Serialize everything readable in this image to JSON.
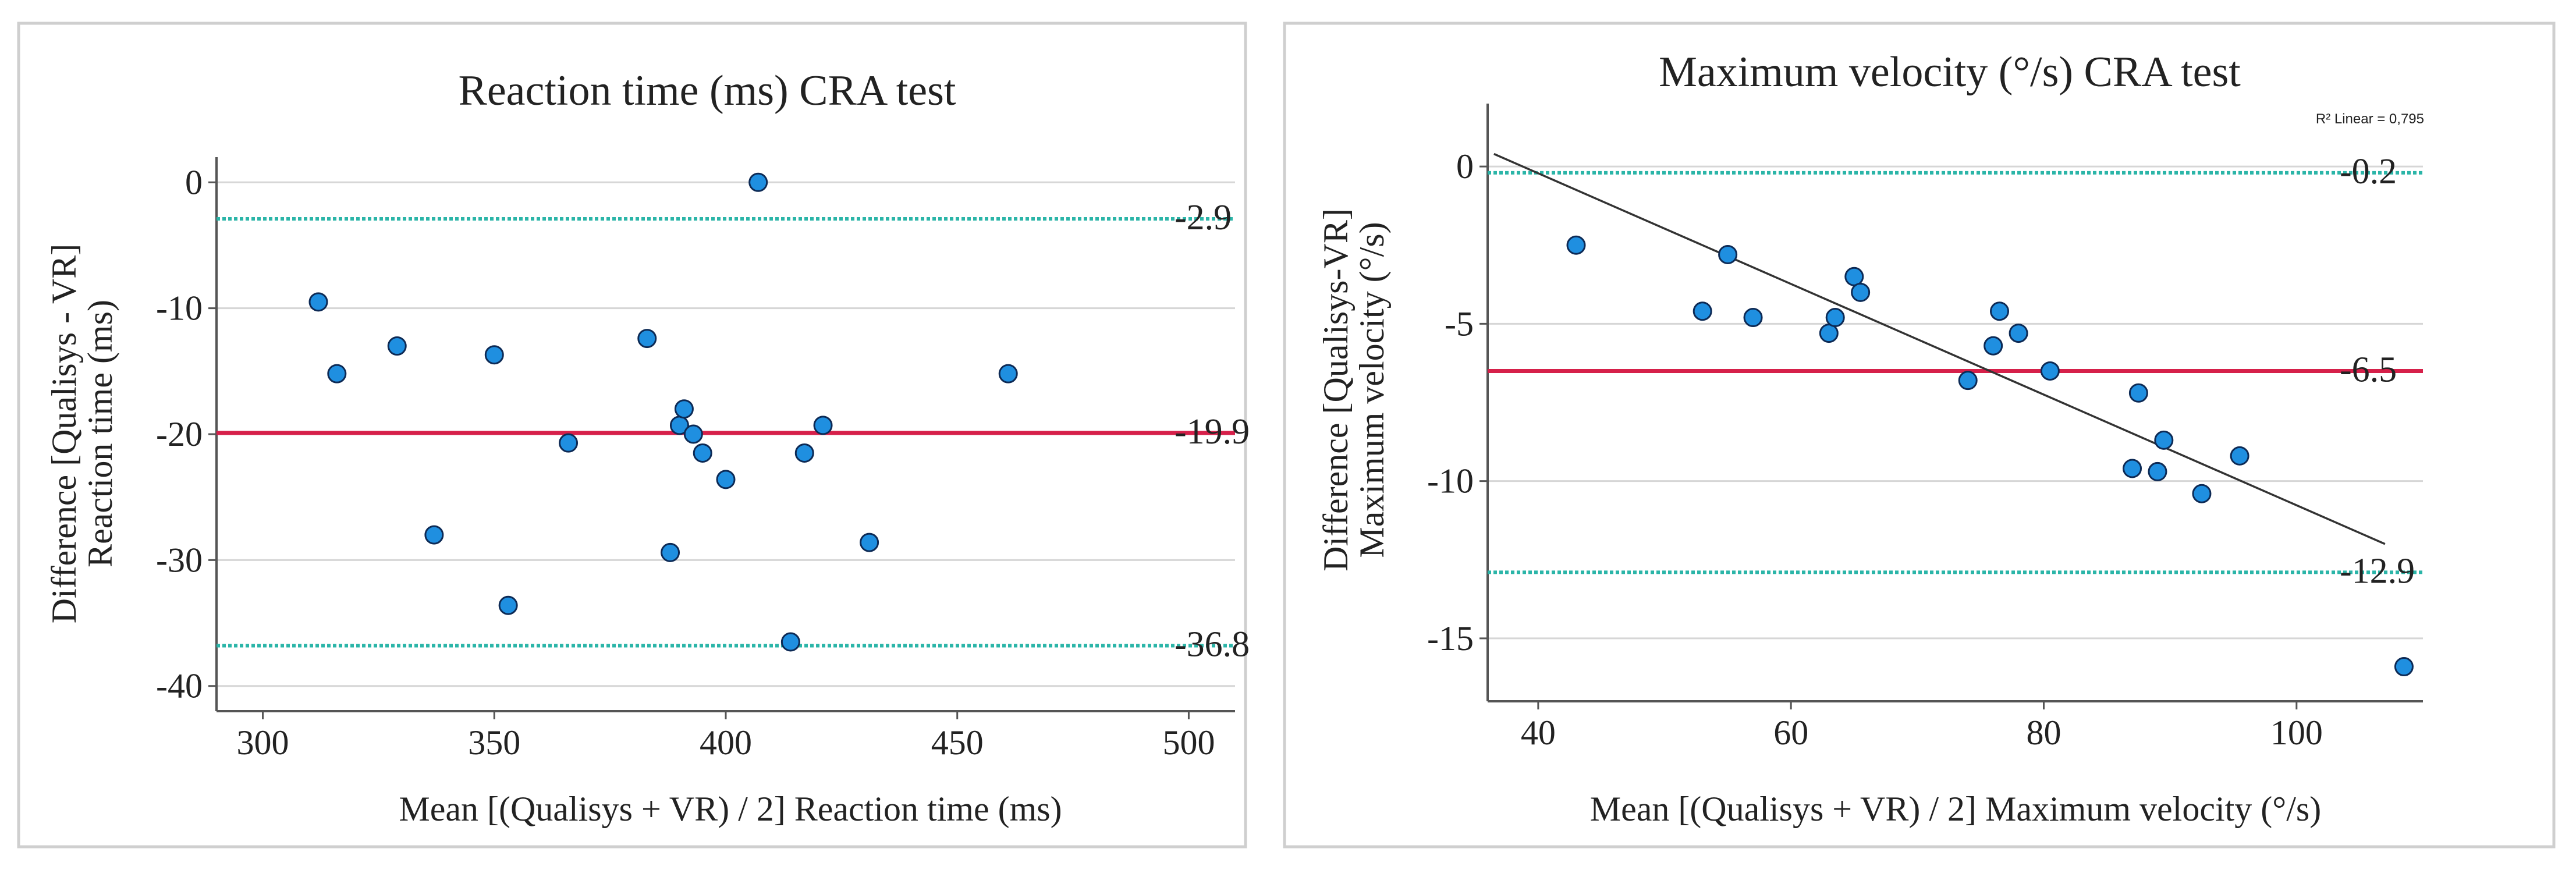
{
  "chart_data": [
    {
      "type": "scatter",
      "title": "Reaction time (ms) CRA test",
      "xlabel": "Mean [(Qualisys + VR) / 2] Reaction time (ms)",
      "ylabel_line1": "Difference [Qualisys - VR]",
      "ylabel_line2": "Reaction time (ms)",
      "xlim": [
        290,
        510
      ],
      "ylim": [
        -42,
        2
      ],
      "xticks": [
        300,
        350,
        400,
        450,
        500
      ],
      "yticks": [
        0,
        -10,
        -20,
        -30,
        -40
      ],
      "grid_y": true,
      "points": [
        {
          "x": 407,
          "y": 0
        },
        {
          "x": 312,
          "y": -9.5
        },
        {
          "x": 316,
          "y": -15.2
        },
        {
          "x": 329,
          "y": -13
        },
        {
          "x": 337,
          "y": -28
        },
        {
          "x": 350,
          "y": -13.7
        },
        {
          "x": 353,
          "y": -33.6
        },
        {
          "x": 366,
          "y": -20.7
        },
        {
          "x": 383,
          "y": -12.4
        },
        {
          "x": 388,
          "y": -29.4
        },
        {
          "x": 390,
          "y": -19.3
        },
        {
          "x": 391,
          "y": -18
        },
        {
          "x": 393,
          "y": -20
        },
        {
          "x": 395,
          "y": -21.5
        },
        {
          "x": 400,
          "y": -23.6
        },
        {
          "x": 414,
          "y": -36.5
        },
        {
          "x": 417,
          "y": -21.5
        },
        {
          "x": 421,
          "y": -19.3
        },
        {
          "x": 431,
          "y": -28.6
        },
        {
          "x": 461,
          "y": -15.2
        }
      ],
      "reference_lines": [
        {
          "value": -2.9,
          "label": "-2.9",
          "style": "dotted",
          "color": "#2bb5a8"
        },
        {
          "value": -19.9,
          "label": "-19.9",
          "style": "solid",
          "color": "#d6204a"
        },
        {
          "value": -36.8,
          "label": "-36.8",
          "style": "dotted",
          "color": "#2bb5a8"
        }
      ]
    },
    {
      "type": "scatter",
      "title": "Maximum velocity (°/s) CRA test",
      "xlabel": "Mean [(Qualisys + VR) / 2] Maximum velocity (°/s)",
      "ylabel_line1": "Difference [Qualisys-VR]",
      "ylabel_line2": "Maximum velocity (°/s)",
      "xlim": [
        36,
        110
      ],
      "ylim": [
        -17,
        2
      ],
      "xticks": [
        40,
        60,
        80,
        100
      ],
      "yticks": [
        0,
        -5,
        -10,
        -15
      ],
      "grid_y": true,
      "annotation": "R² Linear = 0,795",
      "regression": {
        "x": [
          36.5,
          107
        ],
        "y": [
          0.4,
          -12
        ]
      },
      "points": [
        {
          "x": 43,
          "y": -2.5
        },
        {
          "x": 53,
          "y": -4.6
        },
        {
          "x": 55,
          "y": -2.8
        },
        {
          "x": 57,
          "y": -4.8
        },
        {
          "x": 63,
          "y": -5.3
        },
        {
          "x": 63.5,
          "y": -4.8
        },
        {
          "x": 65,
          "y": -3.5
        },
        {
          "x": 65.5,
          "y": -4
        },
        {
          "x": 74,
          "y": -6.8
        },
        {
          "x": 76,
          "y": -5.7
        },
        {
          "x": 76.5,
          "y": -4.6
        },
        {
          "x": 78,
          "y": -5.3
        },
        {
          "x": 80.5,
          "y": -6.5
        },
        {
          "x": 87,
          "y": -9.6
        },
        {
          "x": 87.5,
          "y": -7.2
        },
        {
          "x": 89,
          "y": -9.7
        },
        {
          "x": 89.5,
          "y": -8.7
        },
        {
          "x": 92.5,
          "y": -10.4
        },
        {
          "x": 95.5,
          "y": -9.2
        },
        {
          "x": 108.5,
          "y": -15.9
        }
      ],
      "reference_lines": [
        {
          "value": -0.2,
          "label": "-0.2",
          "style": "dotted",
          "color": "#2bb5a8"
        },
        {
          "value": -6.5,
          "label": "-6.5",
          "style": "solid",
          "color": "#d6204a"
        },
        {
          "value": -12.9,
          "label": "-12.9",
          "style": "dotted",
          "color": "#2bb5a8"
        }
      ]
    }
  ],
  "colors": {
    "point_fill": "#1f8fe0",
    "point_stroke": "#0d2a55",
    "axis": "#555555",
    "grid": "#d6d6d6",
    "panel_border": "#cfcfcf",
    "regression": "#333333",
    "text": "#222222"
  }
}
